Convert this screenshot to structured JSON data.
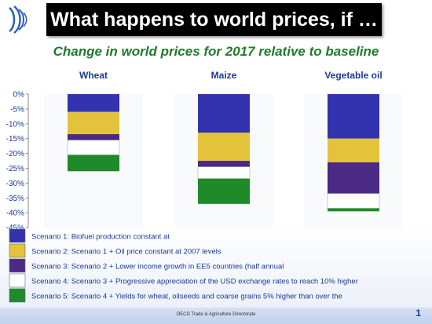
{
  "slide": {
    "title": "What happens to world prices, if …",
    "subtitle": "Change in world prices for 2017 relative to baseline",
    "footer": "OECD Trade & Agriculture Directorate",
    "page_number": "1"
  },
  "colors": {
    "title_bg": "#000000",
    "subtitle": "#1f7a2a",
    "category_label": "#1a3a9a",
    "axis_text": "#1a3a9a"
  },
  "chart_data": {
    "type": "bar",
    "stacked": true,
    "categories": [
      "Wheat",
      "Maize",
      "Vegetable oil"
    ],
    "y_tick_labels": [
      "0%",
      "-5%",
      "-10%",
      "-15%",
      "-20%",
      "-25%",
      "-30%",
      "-35%",
      "-40%",
      "-45%"
    ],
    "ylim": [
      -45,
      0
    ],
    "grid": false,
    "legend_position": "bottom",
    "series": [
      {
        "name": "Scenario 1: Biofuel production constant at",
        "color": "#3333b0",
        "values": [
          -6,
          -13,
          -15
        ]
      },
      {
        "name": "Scenario 2: Scenario 1 + Oil price constant at 2007 levels",
        "color": "#e3c33c",
        "values": [
          -7.5,
          -9.5,
          -8
        ]
      },
      {
        "name": "Scenario 3: Scenario 2 + Lower income growth in EE5 countries (half annual",
        "color": "#4b2a86",
        "values": [
          -2,
          -2,
          -10.5
        ]
      },
      {
        "name": "Scenario 4: Scenario 3 + Progressive appreciation of the USD exchange rates  to reach 10% higher",
        "color": "#ffffff",
        "values": [
          -5,
          -4,
          -5
        ]
      },
      {
        "name": "Scenario 5: Scenario 4 + Yields for wheat, oilseeds and coarse grains 5% higher than over the",
        "color": "#1e8a2a",
        "values": [
          -5.5,
          -8.5,
          -1
        ]
      }
    ]
  }
}
